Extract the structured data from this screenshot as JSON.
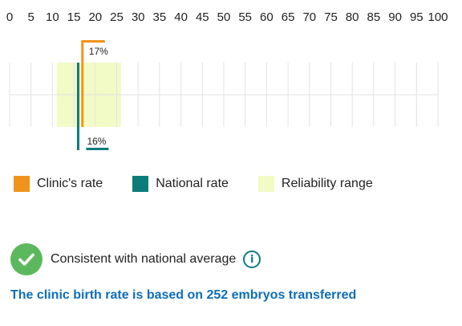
{
  "chart_data": {
    "type": "range-marker",
    "x_axis": {
      "min": 0,
      "max": 100,
      "ticks": [
        0,
        5,
        10,
        15,
        20,
        25,
        30,
        35,
        40,
        45,
        50,
        55,
        60,
        65,
        70,
        75,
        80,
        85,
        90,
        95,
        100
      ],
      "grid": true
    },
    "reliability_range": [
      11,
      26
    ],
    "clinic_rate": {
      "value": 17,
      "label": "17%"
    },
    "national_rate": {
      "value": 16,
      "label": "16%"
    },
    "colors": {
      "clinic": "#f0931c",
      "national": "#0c7c7a",
      "reliability": "#f2fac6",
      "grid": "#e3e3e3"
    }
  },
  "legend": {
    "clinic_label": "Clinic's rate",
    "national_label": "National rate",
    "reliability_label": "Reliability range"
  },
  "status": {
    "text": "Consistent with national average",
    "check_color": "#5cb85c",
    "icon": "check-icon",
    "info_icon": "info-icon",
    "info_glyph": "i"
  },
  "summary_text": "The clinic birth rate is based on 252 embryos transferred"
}
